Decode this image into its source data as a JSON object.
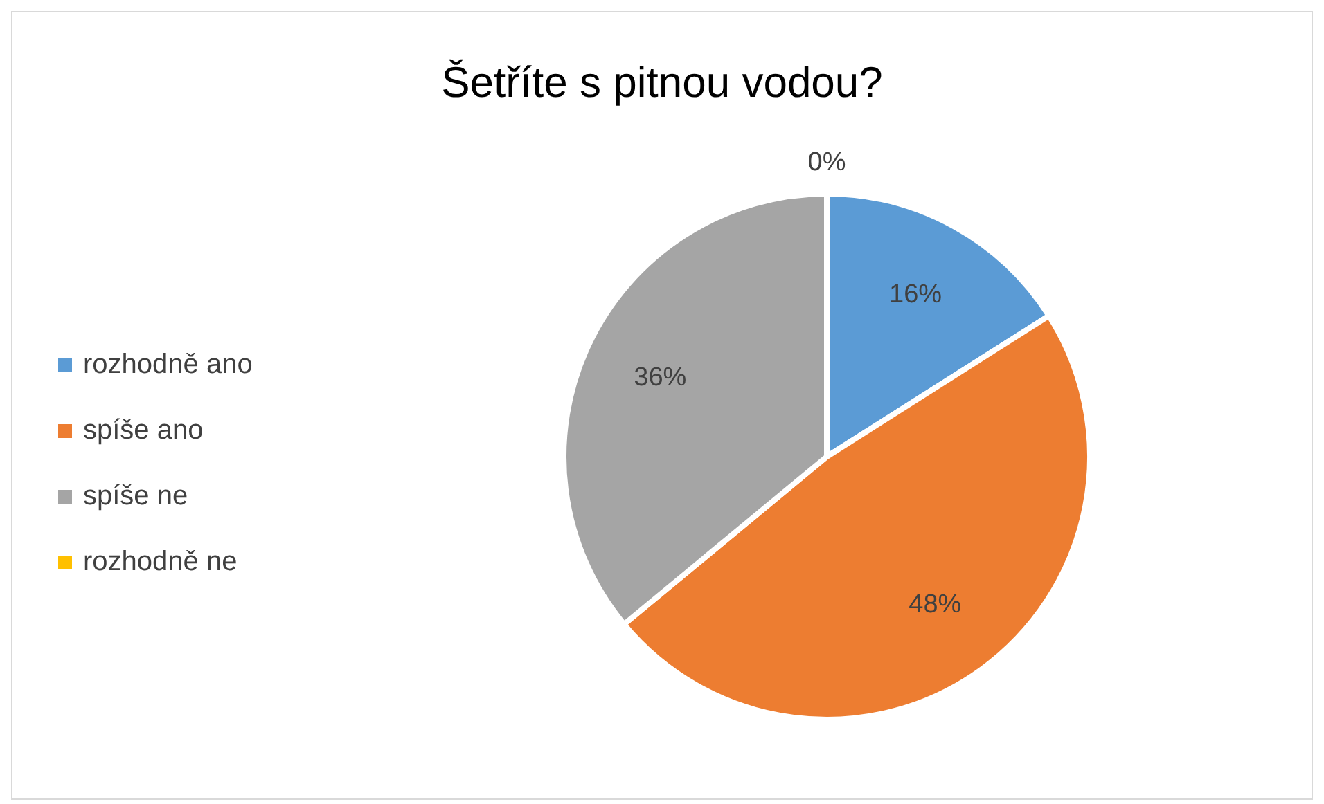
{
  "chart_data": {
    "type": "pie",
    "title": "Šetříte s pitnou vodou?",
    "categories": [
      "rozhodně ano",
      "spíše ano",
      "spíše ne",
      "rozhodně ne"
    ],
    "values": [
      16,
      48,
      36,
      0
    ],
    "colors": [
      "#5b9bd5",
      "#ed7d31",
      "#a5a5a5",
      "#ffc000"
    ],
    "value_labels": [
      "16%",
      "48%",
      "36%",
      "0%"
    ],
    "legend": "left"
  }
}
